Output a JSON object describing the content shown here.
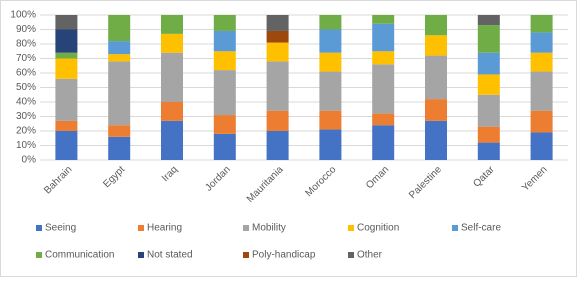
{
  "chart_data": {
    "type": "stacked-bar",
    "categories": [
      "Bahrain",
      "Egypt",
      "Iraq",
      "Jordan",
      "Mauritania",
      "Morocco",
      "Oman",
      "Palestine",
      "Qatar",
      "Yemen"
    ],
    "series": [
      {
        "name": "Seeing",
        "color": "#4472c4",
        "values": [
          20,
          16,
          27,
          18,
          20,
          21,
          24,
          27,
          12,
          19
        ]
      },
      {
        "name": "Hearing",
        "color": "#ed7d31",
        "values": [
          7,
          8,
          13,
          13,
          14,
          13,
          8,
          15,
          11,
          15
        ]
      },
      {
        "name": "Mobility",
        "color": "#a5a5a5",
        "values": [
          29,
          44,
          34,
          31,
          34,
          27,
          34,
          30,
          22,
          27
        ]
      },
      {
        "name": "Cognition",
        "color": "#ffc000",
        "values": [
          14,
          5,
          13,
          13,
          13,
          13,
          9,
          14,
          14,
          13
        ]
      },
      {
        "name": "Self-care",
        "color": "#5b9bd5",
        "values": [
          0,
          9,
          0,
          14,
          0,
          16,
          19,
          0,
          15,
          14
        ]
      },
      {
        "name": "Communication",
        "color": "#70ad47",
        "values": [
          4,
          18,
          13,
          11,
          0,
          10,
          6,
          14,
          19,
          12
        ]
      },
      {
        "name": "Not stated",
        "color": "#264478",
        "values": [
          16,
          0,
          0,
          0,
          0,
          0,
          0,
          0,
          0,
          0
        ]
      },
      {
        "name": "Poly-handicap",
        "color": "#9e480e",
        "values": [
          0,
          0,
          0,
          0,
          8,
          0,
          0,
          0,
          0,
          0
        ]
      },
      {
        "name": "Other",
        "color": "#636363",
        "values": [
          10,
          0,
          0,
          0,
          11,
          0,
          0,
          0,
          7,
          0
        ]
      }
    ],
    "ylim": [
      0,
      100
    ],
    "yticks": [
      {
        "value": 0,
        "label": "0%"
      },
      {
        "value": 10,
        "label": "10%"
      },
      {
        "value": 20,
        "label": "20%"
      },
      {
        "value": 30,
        "label": "30%"
      },
      {
        "value": 40,
        "label": "40%"
      },
      {
        "value": 50,
        "label": "50%"
      },
      {
        "value": 60,
        "label": "60%"
      },
      {
        "value": 70,
        "label": "70%"
      },
      {
        "value": 80,
        "label": "80%"
      },
      {
        "value": 90,
        "label": "90%"
      },
      {
        "value": 100,
        "label": "100%"
      }
    ],
    "grid": true
  }
}
